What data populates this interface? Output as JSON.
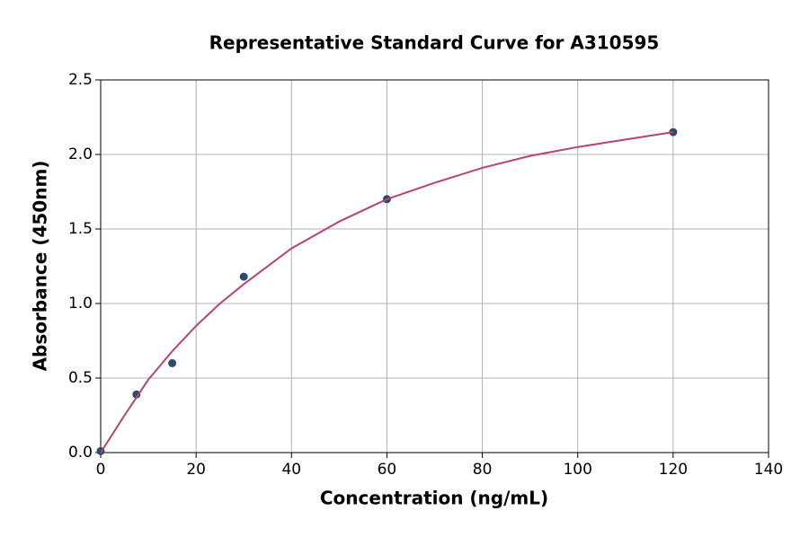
{
  "chart_data": {
    "type": "scatter",
    "title": "Representative Standard Curve for A310595",
    "xlabel": "Concentration (ng/mL)",
    "ylabel": "Absorbance (450nm)",
    "xlim": [
      0,
      140
    ],
    "xticks": [
      0,
      20,
      40,
      60,
      80,
      100,
      120,
      140
    ],
    "ylim": [
      0,
      2.5
    ],
    "yticks": [
      {
        "value": 0,
        "label": "0.0"
      },
      0.5,
      {
        "value": 1,
        "label": "1.0"
      },
      1.5,
      {
        "value": 2,
        "label": "2.0"
      },
      2.5
    ],
    "grid": true,
    "series": [
      {
        "type": "scatter",
        "color": "#2b4a6e",
        "x": [
          0,
          7.5,
          15,
          30,
          60,
          120
        ],
        "values": [
          0.01,
          0.39,
          0.6,
          1.18,
          1.7,
          2.15
        ]
      },
      {
        "type": "line",
        "color": "#b5446e",
        "x": [
          0,
          5,
          10,
          15,
          20,
          25,
          30,
          40,
          50,
          60,
          70,
          80,
          90,
          100,
          110,
          120
        ],
        "values": [
          0,
          0.25,
          0.49,
          0.68,
          0.85,
          1.0,
          1.13,
          1.37,
          1.55,
          1.7,
          1.81,
          1.91,
          1.99,
          2.05,
          2.1,
          2.15
        ]
      }
    ]
  }
}
